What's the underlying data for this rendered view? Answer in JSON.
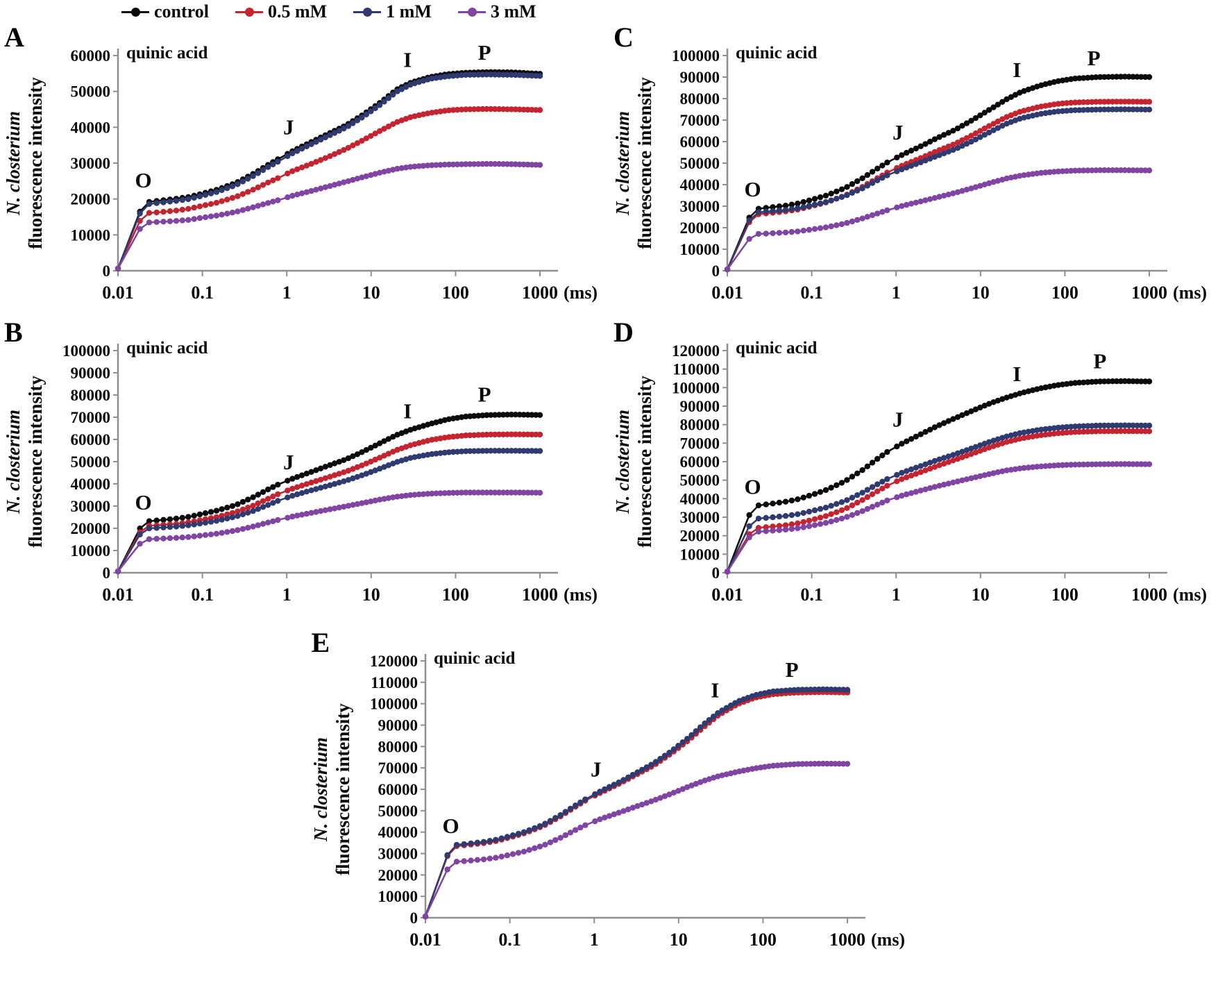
{
  "legend": {
    "items": [
      {
        "label": "control",
        "color": "#0b0b0d"
      },
      {
        "label": "0.5 mM",
        "color": "#c42430"
      },
      {
        "label": "1 mM",
        "color": "#2e3a70"
      },
      {
        "label": "3 mM",
        "color": "#8044a2"
      }
    ]
  },
  "chart_data": [
    {
      "type": "line",
      "panel": "A",
      "title": "quinic acid",
      "ylabel_species": "N. closterium",
      "ylabel_rest": "fluorescence intensity",
      "xlabel": "(ms)",
      "x_scale": "log",
      "x_ticks": [
        "0.01",
        "0.1",
        "1",
        "10",
        "100",
        "1000"
      ],
      "ylim": [
        0,
        60000
      ],
      "y_step": 10000,
      "x": [
        0.01,
        0.02,
        0.03,
        0.05,
        0.07,
        0.1,
        0.15,
        0.25,
        0.4,
        0.6,
        0.8,
        1.2,
        2,
        3,
        5,
        8,
        13,
        20,
        30,
        50,
        80,
        130,
        250,
        500,
        1000
      ],
      "series": [
        {
          "name": "control",
          "color": "#0b0b0d",
          "values": [
            600,
            19000,
            19500,
            20100,
            20600,
            21500,
            22600,
            24500,
            27000,
            29500,
            31200,
            33500,
            36000,
            38000,
            40500,
            43500,
            47000,
            50500,
            52500,
            54000,
            54800,
            55200,
            55400,
            55300,
            54900
          ]
        },
        {
          "name": "0.5 mM",
          "color": "#c42430",
          "values": [
            600,
            16000,
            16300,
            16800,
            17300,
            18100,
            19000,
            20600,
            22600,
            24600,
            25900,
            27900,
            29900,
            31600,
            33900,
            36400,
            39100,
            41400,
            42900,
            44000,
            44700,
            45000,
            45100,
            45000,
            44800
          ]
        },
        {
          "name": "1 mM",
          "color": "#2e3a70",
          "values": [
            600,
            18400,
            18900,
            19500,
            20000,
            20900,
            22000,
            23900,
            26400,
            28900,
            30500,
            32900,
            35400,
            37400,
            39900,
            42900,
            46400,
            49900,
            52000,
            53500,
            54200,
            54600,
            54700,
            54600,
            54300
          ]
        },
        {
          "name": "3 mM",
          "color": "#8044a2",
          "values": [
            600,
            13400,
            13600,
            13900,
            14200,
            14800,
            15400,
            16400,
            17700,
            18900,
            19700,
            21000,
            22300,
            23400,
            24800,
            26100,
            27400,
            28400,
            29000,
            29400,
            29600,
            29700,
            29800,
            29700,
            29500
          ]
        }
      ],
      "annotations": [
        {
          "label": "O",
          "x": 0.02,
          "y": 23200
        },
        {
          "label": "J",
          "x": 1.05,
          "y": 38000
        },
        {
          "label": "I",
          "x": 27,
          "y": 56800
        },
        {
          "label": "P",
          "x": 220,
          "y": 58800
        }
      ]
    },
    {
      "type": "line",
      "panel": "B",
      "title": "quinic acid",
      "ylabel_species": "N. closterium",
      "ylabel_rest": "fluorescence intensity",
      "xlabel": "(ms)",
      "x_scale": "log",
      "x_ticks": [
        "0.01",
        "0.1",
        "1",
        "10",
        "100",
        "1000"
      ],
      "ylim": [
        0,
        100000
      ],
      "y_step": 10000,
      "x": [
        0.01,
        0.02,
        0.03,
        0.05,
        0.07,
        0.1,
        0.15,
        0.25,
        0.4,
        0.6,
        0.8,
        1.2,
        2,
        3,
        5,
        8,
        13,
        20,
        30,
        50,
        80,
        130,
        250,
        500,
        1000
      ],
      "series": [
        {
          "name": "control",
          "color": "#0b0b0d",
          "values": [
            600,
            23000,
            23600,
            24400,
            25200,
            26500,
            28000,
            30500,
            34000,
            37500,
            39800,
            42500,
            45500,
            48000,
            51000,
            54500,
            58500,
            62000,
            64500,
            67000,
            69000,
            70300,
            71000,
            71200,
            71000
          ]
        },
        {
          "name": "0.5 mM",
          "color": "#c42430",
          "values": [
            600,
            21000,
            21400,
            22000,
            22700,
            23800,
            25100,
            27300,
            30200,
            33300,
            35500,
            38000,
            40700,
            42800,
            45500,
            48500,
            52000,
            55200,
            57500,
            59700,
            61000,
            61800,
            62200,
            62300,
            62200
          ]
        },
        {
          "name": "1 mM",
          "color": "#2e3a70",
          "values": [
            600,
            19800,
            20200,
            20800,
            21400,
            22300,
            23400,
            25300,
            27800,
            30500,
            32500,
            34800,
            37200,
            39000,
            41400,
            44000,
            47000,
            49800,
            51800,
            53300,
            54200,
            54700,
            54900,
            54900,
            54800
          ]
        },
        {
          "name": "3 mM",
          "color": "#8044a2",
          "values": [
            600,
            15000,
            15300,
            15700,
            16100,
            16800,
            17600,
            19000,
            20800,
            22600,
            23800,
            25400,
            27000,
            28300,
            29900,
            31400,
            33000,
            34200,
            35000,
            35600,
            35900,
            36100,
            36100,
            36100,
            36000
          ]
        }
      ],
      "annotations": [
        {
          "label": "O",
          "x": 0.02,
          "y": 28500
        },
        {
          "label": "J",
          "x": 1.05,
          "y": 46500
        },
        {
          "label": "I",
          "x": 27,
          "y": 69500
        },
        {
          "label": "P",
          "x": 220,
          "y": 77000
        }
      ]
    },
    {
      "type": "line",
      "panel": "C",
      "title": "quinic acid",
      "ylabel_species": "N. closterium",
      "ylabel_rest": "fluorescence intensity",
      "xlabel": "(ms)",
      "x_scale": "log",
      "x_ticks": [
        "0.01",
        "0.1",
        "1",
        "10",
        "100",
        "1000"
      ],
      "ylim": [
        0,
        100000
      ],
      "y_step": 10000,
      "x": [
        0.01,
        0.02,
        0.03,
        0.05,
        0.07,
        0.1,
        0.15,
        0.25,
        0.4,
        0.6,
        0.8,
        1.2,
        2,
        3,
        5,
        8,
        13,
        20,
        30,
        50,
        80,
        130,
        250,
        500,
        1000
      ],
      "series": [
        {
          "name": "control",
          "color": "#0b0b0d",
          "values": [
            600,
            28500,
            29300,
            30300,
            31300,
            33000,
            35000,
            38500,
            43000,
            47500,
            50500,
            54000,
            58000,
            61500,
            65500,
            70000,
            75000,
            79500,
            83000,
            86000,
            88000,
            89300,
            90000,
            90200,
            90000
          ]
        },
        {
          "name": "0.5 mM",
          "color": "#c42430",
          "values": [
            600,
            26000,
            26700,
            27600,
            28500,
            30000,
            31800,
            35000,
            39000,
            43000,
            45800,
            49000,
            52500,
            55500,
            59000,
            63000,
            67500,
            71300,
            74000,
            76200,
            77500,
            78200,
            78500,
            78600,
            78500
          ]
        },
        {
          "name": "1 mM",
          "color": "#2e3a70",
          "values": [
            600,
            27000,
            27500,
            28300,
            29100,
            30400,
            32000,
            34800,
            38300,
            42000,
            44500,
            47300,
            50500,
            53200,
            56500,
            60200,
            64500,
            68200,
            70800,
            72800,
            74000,
            74600,
            74900,
            75000,
            74900
          ]
        },
        {
          "name": "3 mM",
          "color": "#8044a2",
          "values": [
            600,
            17000,
            17300,
            17800,
            18300,
            19200,
            20200,
            22000,
            24300,
            26600,
            28200,
            30200,
            32300,
            34000,
            36200,
            38400,
            40800,
            42800,
            44200,
            45400,
            46100,
            46500,
            46700,
            46700,
            46600
          ]
        }
      ],
      "annotations": [
        {
          "label": "O",
          "x": 0.02,
          "y": 34500
        },
        {
          "label": "J",
          "x": 1.05,
          "y": 61000
        },
        {
          "label": "I",
          "x": 27,
          "y": 90000
        },
        {
          "label": "P",
          "x": 220,
          "y": 95500
        }
      ]
    },
    {
      "type": "line",
      "panel": "D",
      "title": "quinic acid",
      "ylabel_species": "N. closterium",
      "ylabel_rest": "fluorescence intensity",
      "xlabel": "(ms)",
      "x_scale": "log",
      "x_ticks": [
        "0.01",
        "0.1",
        "1",
        "10",
        "100",
        "1000"
      ],
      "ylim": [
        0,
        120000
      ],
      "y_step": 10000,
      "x": [
        0.01,
        0.02,
        0.03,
        0.05,
        0.07,
        0.1,
        0.15,
        0.25,
        0.4,
        0.6,
        0.8,
        1.2,
        2,
        3,
        5,
        8,
        13,
        20,
        30,
        50,
        80,
        130,
        250,
        500,
        1000
      ],
      "series": [
        {
          "name": "control",
          "color": "#0b0b0d",
          "values": [
            600,
            36000,
            37000,
            38400,
            39800,
            42000,
            44800,
            49500,
            55500,
            61500,
            65500,
            70000,
            75000,
            79000,
            83500,
            87500,
            91500,
            94500,
            97000,
            99500,
            101300,
            102500,
            103300,
            103500,
            103300
          ]
        },
        {
          "name": "0.5 mM",
          "color": "#c42430",
          "values": [
            600,
            24000,
            24700,
            25700,
            26800,
            28500,
            30700,
            34500,
            39300,
            44000,
            47200,
            50800,
            54500,
            57500,
            61000,
            64300,
            67800,
            70500,
            72500,
            74200,
            75300,
            76000,
            76400,
            76500,
            76400
          ]
        },
        {
          "name": "1 mM",
          "color": "#2e3a70",
          "values": [
            600,
            29000,
            29700,
            30700,
            31700,
            33300,
            35300,
            38800,
            43300,
            47800,
            50800,
            54200,
            57800,
            60700,
            64000,
            67300,
            70800,
            73500,
            75500,
            77200,
            78300,
            79000,
            79500,
            79600,
            79500
          ]
        },
        {
          "name": "3 mM",
          "color": "#8044a2",
          "values": [
            600,
            22000,
            22500,
            23300,
            24100,
            25400,
            27000,
            29800,
            33300,
            36800,
            39200,
            41800,
            44500,
            46600,
            49000,
            51200,
            53400,
            55200,
            56400,
            57400,
            58000,
            58400,
            58600,
            58700,
            58600
          ]
        }
      ],
      "annotations": [
        {
          "label": "O",
          "x": 0.02,
          "y": 42500
        },
        {
          "label": "J",
          "x": 1.05,
          "y": 79000
        },
        {
          "label": "I",
          "x": 27,
          "y": 103500
        },
        {
          "label": "P",
          "x": 260,
          "y": 110500
        }
      ]
    },
    {
      "type": "line",
      "panel": "E",
      "title": "quinic acid",
      "ylabel_species": "N. closterium",
      "ylabel_rest": "fluorescence intensity",
      "xlabel": "(ms)",
      "x_scale": "log",
      "x_ticks": [
        "0.01",
        "0.1",
        "1",
        "10",
        "100",
        "1000"
      ],
      "ylim": [
        0,
        120000
      ],
      "y_step": 10000,
      "x": [
        0.01,
        0.02,
        0.03,
        0.05,
        0.07,
        0.1,
        0.15,
        0.25,
        0.4,
        0.6,
        0.8,
        1.2,
        2,
        3,
        5,
        8,
        13,
        20,
        30,
        50,
        80,
        130,
        250,
        500,
        1000
      ],
      "series": [
        {
          "name": "control",
          "color": "#0b0b0d",
          "values": [
            600,
            33500,
            34200,
            35200,
            36200,
            37800,
            39800,
            43200,
            47700,
            52200,
            55200,
            58800,
            63000,
            66800,
            71500,
            77000,
            83500,
            90000,
            95500,
            100500,
            103500,
            105200,
            106000,
            106200,
            106000
          ]
        },
        {
          "name": "0.5 mM",
          "color": "#c42430",
          "values": [
            600,
            33200,
            33900,
            34900,
            35900,
            37500,
            39500,
            42900,
            47400,
            51900,
            54900,
            58500,
            62700,
            66400,
            71000,
            76500,
            82800,
            89200,
            94800,
            99800,
            102800,
            104400,
            105200,
            105400,
            105200
          ]
        },
        {
          "name": "1 mM",
          "color": "#2e3a70",
          "values": [
            600,
            33800,
            34500,
            35500,
            36500,
            38100,
            40100,
            43500,
            48000,
            52500,
            55500,
            59200,
            63400,
            67200,
            72000,
            77500,
            84000,
            90500,
            96000,
            101000,
            104000,
            105700,
            106500,
            106700,
            106500
          ]
        },
        {
          "name": "3 mM",
          "color": "#8044a2",
          "values": [
            600,
            26000,
            26500,
            27300,
            28100,
            29400,
            31000,
            33800,
            37400,
            41000,
            43400,
            46200,
            49200,
            51700,
            54700,
            57800,
            61200,
            64000,
            66200,
            68200,
            69800,
            71000,
            71800,
            72000,
            71900
          ]
        }
      ],
      "annotations": [
        {
          "label": "O",
          "x": 0.02,
          "y": 39500
        },
        {
          "label": "J",
          "x": 1.05,
          "y": 66000
        },
        {
          "label": "I",
          "x": 27,
          "y": 103000
        },
        {
          "label": "P",
          "x": 220,
          "y": 112500
        }
      ]
    }
  ]
}
